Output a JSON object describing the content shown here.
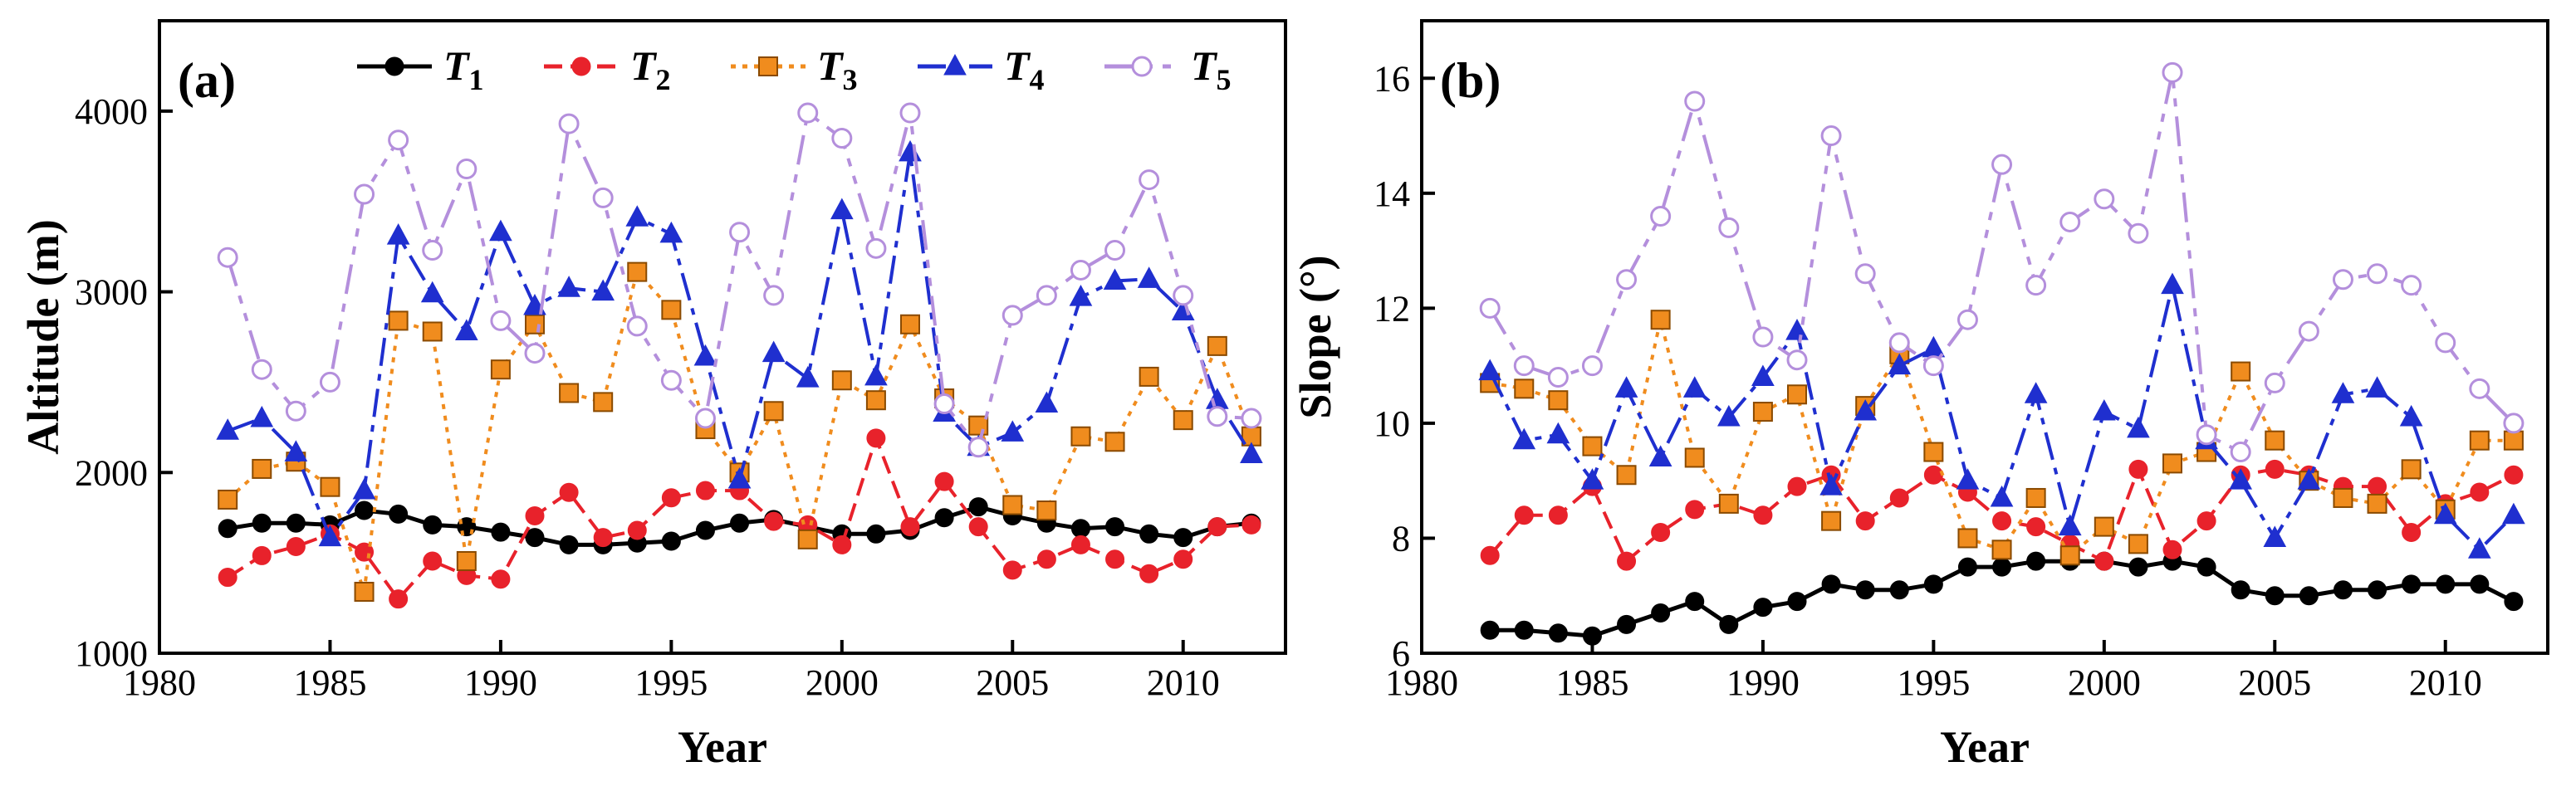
{
  "chart_data": [
    {
      "type": "line",
      "panel_label": "(a)",
      "title": "",
      "xlabel": "Year",
      "ylabel": "Altitude (m)",
      "xlim": [
        1980,
        2013
      ],
      "ylim": [
        1000,
        4500
      ],
      "xticks": [
        1980,
        1985,
        1990,
        1995,
        2000,
        2005,
        2010
      ],
      "yticks": [
        1000,
        2000,
        3000,
        4000
      ],
      "x": [
        1982,
        1983,
        1984,
        1985,
        1986,
        1987,
        1988,
        1989,
        1990,
        1991,
        1992,
        1993,
        1994,
        1995,
        1996,
        1997,
        1998,
        1999,
        2000,
        2001,
        2002,
        2003,
        2004,
        2005,
        2006,
        2007,
        2008,
        2009,
        2010,
        2011,
        2012
      ],
      "series": [
        {
          "name": "T1",
          "color": "#000000",
          "values": [
            1690,
            1720,
            1720,
            1710,
            1790,
            1770,
            1710,
            1700,
            1670,
            1640,
            1600,
            1600,
            1610,
            1620,
            1680,
            1720,
            1740,
            1700,
            1660,
            1660,
            1680,
            1750,
            1810,
            1760,
            1720,
            1690,
            1700,
            1660,
            1640,
            1700,
            1720
          ]
        },
        {
          "name": "T2",
          "color": "#e8222b",
          "values": [
            1420,
            1540,
            1590,
            1660,
            1560,
            1300,
            1510,
            1430,
            1410,
            1760,
            1890,
            1640,
            1680,
            1860,
            1900,
            1900,
            1730,
            1710,
            1600,
            2190,
            1700,
            1950,
            1700,
            1460,
            1520,
            1600,
            1520,
            1440,
            1520,
            1700,
            1710
          ]
        },
        {
          "name": "T3",
          "color": "#f08c1e",
          "values": [
            1850,
            2020,
            2060,
            1920,
            1340,
            2840,
            2780,
            1510,
            2570,
            2820,
            2440,
            2390,
            3110,
            2900,
            2240,
            2000,
            2340,
            1630,
            2510,
            2400,
            2820,
            2410,
            2260,
            1820,
            1790,
            2200,
            2170,
            2530,
            2290,
            2700,
            2200
          ]
        },
        {
          "name": "T4",
          "color": "#1f2fcf",
          "values": [
            2230,
            2300,
            2110,
            1640,
            1900,
            3310,
            2990,
            2780,
            3330,
            2920,
            3020,
            3000,
            3410,
            3320,
            2640,
            1960,
            2660,
            2520,
            3450,
            2530,
            3770,
            2330,
            2140,
            2220,
            2380,
            2970,
            3060,
            3070,
            2890,
            2400,
            2100
          ]
        },
        {
          "name": "T5",
          "color": "#b48fdc",
          "values": [
            3190,
            2570,
            2340,
            2500,
            3540,
            3840,
            3230,
            3680,
            2840,
            2660,
            3930,
            3520,
            2810,
            2510,
            2300,
            3330,
            2980,
            3990,
            3850,
            3240,
            3990,
            2380,
            2140,
            2870,
            2980,
            3120,
            3230,
            3620,
            2980,
            2310,
            2300
          ]
        }
      ],
      "legend": {
        "placement": "top",
        "entries": [
          {
            "symbol": "T",
            "sub": "1"
          },
          {
            "symbol": "T",
            "sub": "2"
          },
          {
            "symbol": "T",
            "sub": "3"
          },
          {
            "symbol": "T",
            "sub": "4"
          },
          {
            "symbol": "T",
            "sub": "5"
          }
        ]
      }
    },
    {
      "type": "line",
      "panel_label": "(b)",
      "title": "",
      "xlabel": "Year",
      "ylabel": "Slope (°)",
      "xlim": [
        1980,
        2013
      ],
      "ylim": [
        6,
        17
      ],
      "xticks": [
        1980,
        1985,
        1990,
        1995,
        2000,
        2005,
        2010
      ],
      "yticks": [
        6,
        8,
        10,
        12,
        14,
        16
      ],
      "x": [
        1982,
        1983,
        1984,
        1985,
        1986,
        1987,
        1988,
        1989,
        1990,
        1991,
        1992,
        1993,
        1994,
        1995,
        1996,
        1997,
        1998,
        1999,
        2000,
        2001,
        2002,
        2003,
        2004,
        2005,
        2006,
        2007,
        2008,
        2009,
        2010,
        2011,
        2012
      ],
      "series": [
        {
          "name": "T1",
          "color": "#000000",
          "values": [
            6.4,
            6.4,
            6.35,
            6.3,
            6.5,
            6.7,
            6.9,
            6.5,
            6.8,
            6.9,
            7.2,
            7.1,
            7.1,
            7.2,
            7.5,
            7.5,
            7.6,
            7.6,
            7.6,
            7.5,
            7.6,
            7.5,
            7.1,
            7.0,
            7.0,
            7.1,
            7.1,
            7.2,
            7.2,
            7.2,
            6.9
          ]
        },
        {
          "name": "T2",
          "color": "#e8222b",
          "values": [
            7.7,
            8.4,
            8.4,
            8.9,
            7.6,
            8.1,
            8.5,
            8.6,
            8.4,
            8.9,
            9.1,
            8.3,
            8.7,
            9.1,
            8.8,
            8.3,
            8.2,
            7.9,
            7.6,
            9.2,
            7.8,
            8.3,
            9.1,
            9.2,
            9.1,
            8.9,
            8.9,
            8.1,
            8.6,
            8.8,
            9.1
          ]
        },
        {
          "name": "T3",
          "color": "#f08c1e",
          "values": [
            10.7,
            10.6,
            10.4,
            9.6,
            9.1,
            11.8,
            9.4,
            8.6,
            10.2,
            10.5,
            8.3,
            10.3,
            11.2,
            9.5,
            8.0,
            7.8,
            8.7,
            7.7,
            8.2,
            7.9,
            9.3,
            9.5,
            10.9,
            9.7,
            9.0,
            8.7,
            8.6,
            9.2,
            8.5,
            9.7,
            9.7
          ]
        },
        {
          "name": "T4",
          "color": "#1f2fcf",
          "values": [
            10.9,
            9.7,
            9.8,
            9.0,
            10.6,
            9.4,
            10.6,
            10.1,
            10.8,
            11.6,
            8.9,
            10.2,
            11.0,
            11.3,
            9.0,
            8.7,
            10.5,
            8.2,
            10.2,
            9.9,
            12.4,
            9.7,
            9.0,
            8.0,
            9.0,
            10.5,
            10.6,
            10.1,
            8.4,
            7.8,
            8.4
          ]
        },
        {
          "name": "T5",
          "color": "#b48fdc",
          "values": [
            12.0,
            11.0,
            10.8,
            11.0,
            12.5,
            13.6,
            15.6,
            13.4,
            11.5,
            11.1,
            15.0,
            12.6,
            11.4,
            11.0,
            11.8,
            14.5,
            12.4,
            13.5,
            13.9,
            13.3,
            16.1,
            9.8,
            9.5,
            10.7,
            11.6,
            12.5,
            12.6,
            12.4,
            11.4,
            10.6,
            10.0
          ]
        }
      ]
    }
  ]
}
